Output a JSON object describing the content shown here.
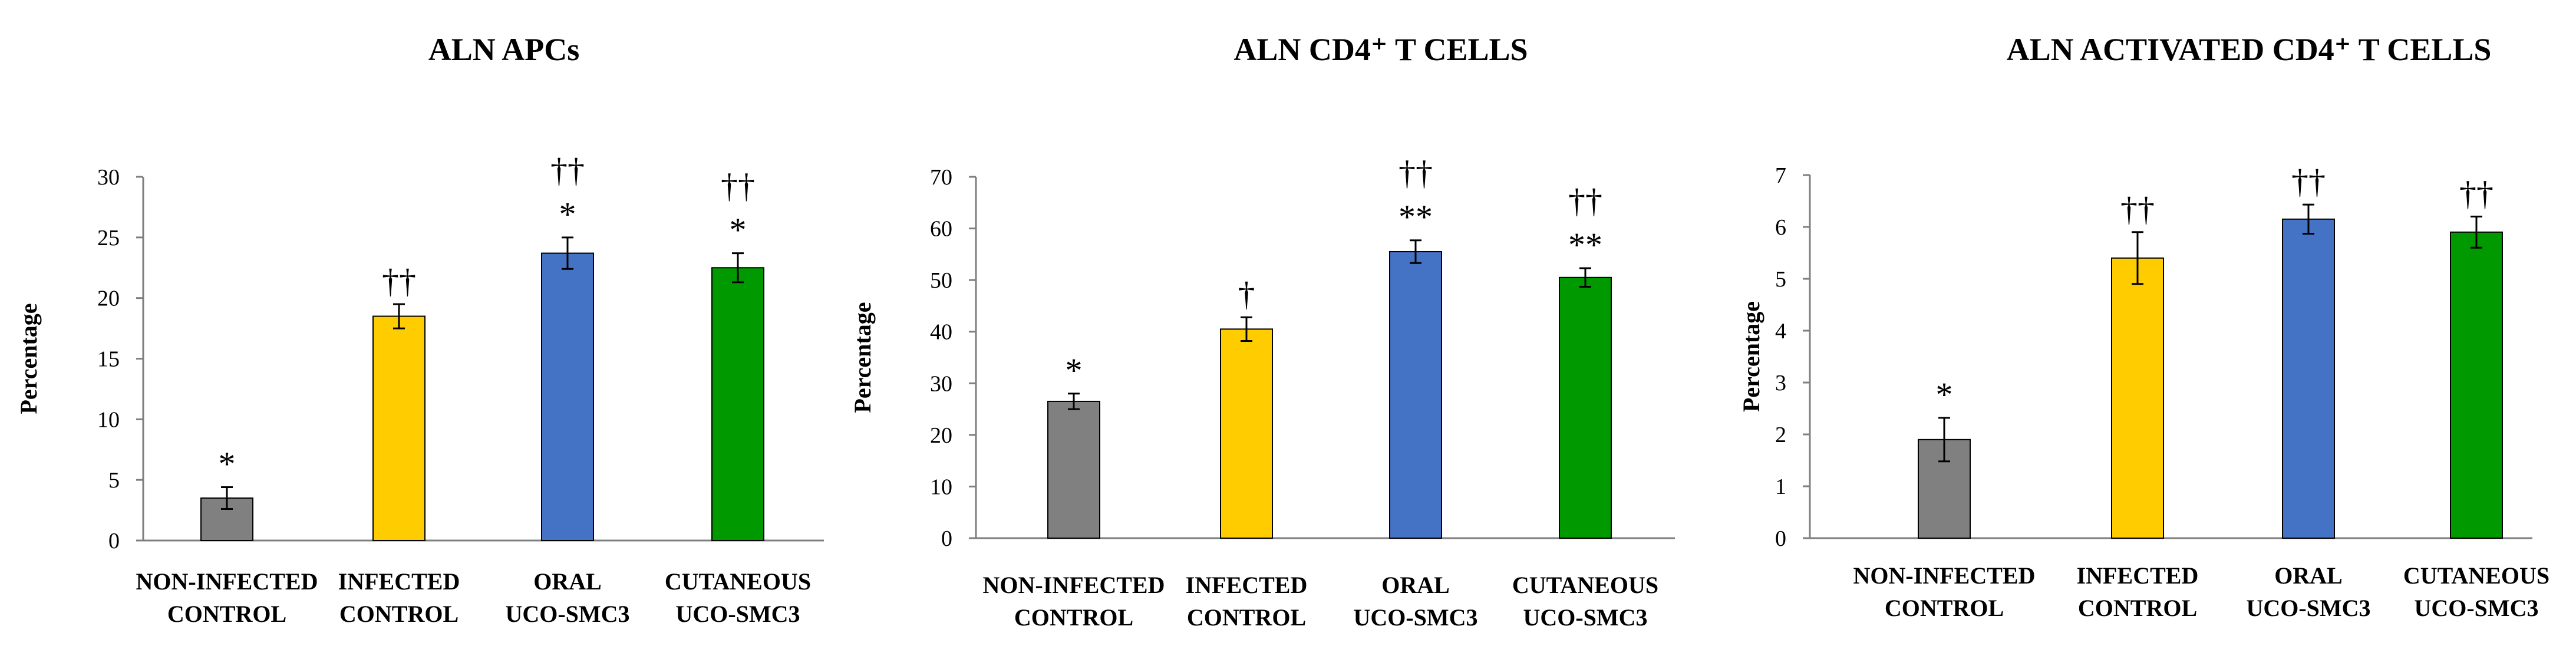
{
  "chart_data": [
    {
      "type": "bar",
      "title": "ALN APCs",
      "ylabel": "Percentage",
      "xlabel": "",
      "ylim": [
        0,
        30
      ],
      "yticks": [
        0,
        5,
        10,
        15,
        20,
        25,
        30
      ],
      "categories": [
        [
          "NON-INFECTED",
          "CONTROL"
        ],
        [
          "INFECTED",
          "CONTROL"
        ],
        [
          "ORAL",
          "UCO-SMC3"
        ],
        [
          "CUTANEOUS",
          "UCO-SMC3"
        ]
      ],
      "values": [
        3.5,
        18.5,
        23.7,
        22.5
      ],
      "errors": [
        0.9,
        1.0,
        1.3,
        1.2
      ],
      "colors": [
        "#808080",
        "#ffcc00",
        "#4472c4",
        "#009900"
      ],
      "annotations": [
        [
          "*"
        ],
        [
          "††"
        ],
        [
          "*",
          "††"
        ],
        [
          "*",
          "††"
        ]
      ]
    },
    {
      "type": "bar",
      "title": "ALN CD4⁺ T CELLS",
      "ylabel": "Percentage",
      "xlabel": "",
      "ylim": [
        0,
        70
      ],
      "yticks": [
        0,
        10,
        20,
        30,
        40,
        50,
        60,
        70
      ],
      "categories": [
        [
          "NON-INFECTED",
          "CONTROL"
        ],
        [
          "INFECTED",
          "CONTROL"
        ],
        [
          "ORAL",
          "UCO-SMC3"
        ],
        [
          "CUTANEOUS",
          "UCO-SMC3"
        ]
      ],
      "values": [
        26.5,
        40.5,
        55.5,
        50.5
      ],
      "errors": [
        1.5,
        2.3,
        2.2,
        1.8
      ],
      "colors": [
        "#808080",
        "#ffcc00",
        "#4472c4",
        "#009900"
      ],
      "annotations": [
        [
          "*"
        ],
        [
          "†"
        ],
        [
          "**",
          "††"
        ],
        [
          "**",
          "††"
        ]
      ]
    },
    {
      "type": "bar",
      "title": "ALN ACTIVATED CD4⁺ T CELLS",
      "ylabel": "Percentage",
      "xlabel": "",
      "ylim": [
        0,
        7
      ],
      "yticks": [
        0,
        1,
        2,
        3,
        4,
        5,
        6,
        7
      ],
      "categories": [
        [
          "NON-INFECTED",
          "CONTROL"
        ],
        [
          "INFECTED",
          "CONTROL"
        ],
        [
          "ORAL",
          "UCO-SMC3"
        ],
        [
          "CUTANEOUS",
          "UCO-SMC3"
        ]
      ],
      "values": [
        1.9,
        5.4,
        6.15,
        5.9
      ],
      "errors": [
        0.42,
        0.5,
        0.28,
        0.3
      ],
      "colors": [
        "#808080",
        "#ffcc00",
        "#4472c4",
        "#009900"
      ],
      "annotations": [
        [
          "*"
        ],
        [
          "††"
        ],
        [
          "††"
        ],
        [
          "††"
        ]
      ]
    }
  ]
}
